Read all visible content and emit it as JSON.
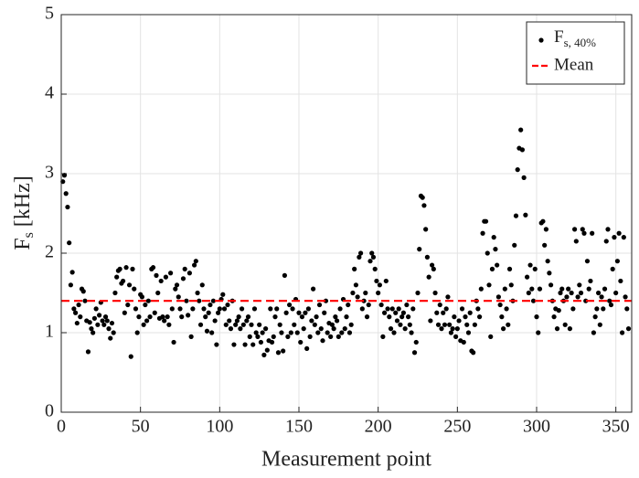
{
  "chart_data": {
    "type": "scatter",
    "xlabel": "Measurement point",
    "ylabel": {
      "main": "F",
      "sub": "s",
      "unit": " [kHz]"
    },
    "xlim": [
      0,
      360
    ],
    "xticks": [
      0,
      50,
      100,
      150,
      200,
      250,
      300,
      350
    ],
    "ylim": [
      0,
      5
    ],
    "yticks": [
      0,
      1,
      2,
      3,
      4,
      5
    ],
    "grid": true,
    "legend": "upper right",
    "x": [
      1,
      2,
      3,
      4,
      5,
      6,
      7,
      8,
      9,
      10,
      11,
      12,
      13,
      14,
      15,
      16,
      17,
      18,
      19,
      20,
      21,
      22,
      23,
      24,
      25,
      26,
      27,
      28,
      29,
      30,
      31,
      32,
      33,
      34,
      35,
      36,
      37,
      38,
      39,
      40,
      41,
      42,
      43,
      44,
      45,
      46,
      47,
      48,
      49,
      50,
      51,
      52,
      53,
      54,
      55,
      56,
      57,
      58,
      59,
      60,
      61,
      62,
      63,
      64,
      65,
      66,
      67,
      68,
      69,
      70,
      71,
      72,
      73,
      74,
      75,
      76,
      77,
      78,
      79,
      80,
      81,
      82,
      83,
      84,
      85,
      86,
      87,
      88,
      89,
      90,
      91,
      92,
      93,
      94,
      95,
      96,
      97,
      98,
      99,
      100,
      101,
      102,
      103,
      104,
      105,
      106,
      107,
      108,
      109,
      110,
      111,
      112,
      113,
      114,
      115,
      116,
      117,
      118,
      119,
      120,
      121,
      122,
      123,
      124,
      125,
      126,
      127,
      128,
      129,
      130,
      131,
      132,
      133,
      134,
      135,
      136,
      137,
      138,
      139,
      140,
      141,
      142,
      143,
      144,
      145,
      146,
      147,
      148,
      149,
      150,
      151,
      152,
      153,
      154,
      155,
      156,
      157,
      158,
      159,
      160,
      161,
      162,
      163,
      164,
      165,
      166,
      167,
      168,
      169,
      170,
      171,
      172,
      173,
      174,
      175,
      176,
      177,
      178,
      179,
      180,
      181,
      182,
      183,
      184,
      185,
      186,
      187,
      188,
      189,
      190,
      191,
      192,
      193,
      194,
      195,
      196,
      197,
      198,
      199,
      200,
      201,
      202,
      203,
      204,
      205,
      206,
      207,
      208,
      209,
      210,
      211,
      212,
      213,
      214,
      215,
      216,
      217,
      218,
      219,
      220,
      221,
      222,
      223,
      224,
      225,
      226,
      227,
      228,
      229,
      230,
      231,
      232,
      233,
      234,
      235,
      236,
      237,
      238,
      239,
      240,
      241,
      242,
      243,
      244,
      245,
      246,
      247,
      248,
      249,
      250,
      251,
      252,
      253,
      254,
      255,
      256,
      257,
      258,
      259,
      260,
      261,
      262,
      263,
      264,
      265,
      266,
      267,
      268,
      269,
      270,
      271,
      272,
      273,
      274,
      275,
      276,
      277,
      278,
      279,
      280,
      281,
      282,
      283,
      284,
      285,
      286,
      287,
      288,
      289,
      290,
      291,
      292,
      293,
      294,
      295,
      296,
      297,
      298,
      299,
      300,
      301,
      302,
      303,
      304,
      305,
      306,
      307,
      308,
      309,
      310,
      311,
      312,
      313,
      314,
      315,
      316,
      317,
      318,
      319,
      320,
      321,
      322,
      323,
      324,
      325,
      326,
      327,
      328,
      329,
      330,
      331,
      332,
      333,
      334,
      335,
      336,
      337,
      338,
      339,
      340,
      341,
      342,
      343,
      344,
      345,
      346,
      347,
      348,
      349,
      350,
      351,
      352,
      353,
      354,
      355,
      356,
      357,
      358
    ],
    "series": [
      {
        "name": "F",
        "name_subscript": "s, 40%",
        "color": "#000000",
        "values": [
          2.9,
          2.98,
          2.75,
          2.58,
          2.13,
          1.6,
          1.76,
          1.3,
          1.25,
          1.12,
          1.35,
          1.2,
          1.55,
          1.52,
          1.4,
          1.15,
          0.76,
          1.13,
          1.05,
          1.0,
          1.18,
          1.3,
          1.1,
          1.22,
          1.38,
          1.15,
          1.1,
          1.2,
          1.15,
          1.05,
          0.93,
          1.12,
          1.0,
          1.5,
          1.7,
          1.78,
          1.8,
          1.62,
          1.65,
          1.25,
          1.82,
          1.35,
          1.6,
          0.7,
          1.8,
          1.55,
          1.3,
          1.0,
          1.2,
          1.48,
          1.45,
          1.1,
          1.35,
          1.15,
          1.4,
          1.2,
          1.8,
          1.82,
          1.25,
          1.72,
          1.5,
          1.18,
          1.65,
          1.2,
          1.15,
          1.7,
          1.2,
          1.1,
          1.75,
          1.3,
          0.88,
          1.55,
          1.6,
          1.45,
          1.3,
          1.2,
          1.68,
          1.8,
          1.4,
          1.22,
          1.75,
          0.95,
          1.3,
          1.85,
          1.9,
          1.5,
          1.4,
          1.1,
          1.6,
          1.3,
          1.2,
          1.02,
          1.25,
          1.35,
          1.0,
          1.4,
          1.15,
          0.85,
          1.25,
          1.3,
          1.42,
          1.48,
          1.3,
          1.1,
          1.35,
          1.15,
          1.05,
          1.4,
          0.85,
          1.1,
          1.15,
          1.2,
          1.05,
          1.3,
          1.1,
          0.85,
          1.15,
          1.2,
          0.95,
          1.1,
          0.85,
          1.3,
          1.0,
          0.95,
          1.1,
          0.88,
          1.0,
          0.72,
          1.05,
          0.78,
          0.9,
          1.3,
          0.88,
          0.95,
          1.2,
          1.3,
          0.75,
          1.1,
          1.0,
          0.77,
          1.72,
          1.25,
          0.95,
          1.35,
          1.0,
          1.3,
          1.1,
          1.42,
          1.0,
          1.25,
          0.88,
          1.2,
          1.05,
          1.25,
          0.8,
          1.3,
          0.95,
          1.15,
          1.55,
          1.1,
          1.2,
          1.0,
          1.35,
          1.05,
          0.9,
          1.25,
          1.4,
          1.0,
          1.12,
          0.95,
          1.1,
          1.05,
          1.2,
          1.15,
          0.95,
          1.3,
          1.0,
          1.42,
          1.05,
          1.2,
          1.35,
          1.0,
          1.1,
          1.5,
          1.8,
          1.6,
          1.45,
          1.95,
          2.0,
          1.3,
          1.4,
          1.5,
          1.2,
          1.35,
          1.9,
          2.0,
          1.95,
          1.8,
          1.65,
          1.5,
          1.6,
          1.35,
          0.95,
          1.25,
          1.65,
          1.3,
          1.2,
          1.05,
          1.3,
          1.0,
          1.25,
          1.15,
          1.3,
          1.1,
          1.2,
          1.25,
          1.05,
          1.35,
          1.2,
          1.1,
          1.0,
          1.3,
          0.75,
          0.88,
          1.5,
          2.05,
          2.72,
          2.7,
          2.6,
          2.3,
          1.95,
          1.7,
          1.15,
          1.85,
          1.8,
          1.5,
          1.25,
          1.1,
          1.35,
          1.05,
          1.25,
          1.1,
          1.3,
          1.45,
          1.1,
          1.0,
          1.05,
          1.2,
          0.95,
          1.05,
          1.15,
          0.9,
          1.3,
          0.88,
          1.2,
          1.1,
          1.0,
          1.25,
          0.77,
          0.75,
          1.1,
          1.4,
          1.3,
          1.2,
          1.55,
          2.25,
          2.4,
          2.4,
          2.0,
          1.6,
          0.95,
          1.8,
          2.2,
          2.05,
          1.85,
          1.45,
          1.35,
          1.2,
          1.05,
          1.55,
          1.3,
          1.1,
          1.8,
          1.6,
          1.4,
          2.1,
          2.47,
          3.05,
          3.32,
          3.55,
          3.3,
          2.95,
          2.48,
          1.7,
          1.5,
          1.85,
          1.55,
          1.4,
          1.8,
          1.2,
          1.0,
          1.55,
          2.38,
          2.4,
          2.1,
          2.3,
          1.9,
          1.75,
          1.6,
          1.4,
          1.2,
          1.3,
          1.05,
          1.28,
          1.5,
          1.55,
          1.4,
          1.1,
          1.45,
          1.55,
          1.05,
          1.5,
          1.3,
          2.3,
          2.15,
          1.45,
          1.6,
          1.5,
          2.3,
          2.25,
          1.4,
          1.9,
          1.55,
          1.65,
          2.25,
          1.0,
          1.2,
          1.3,
          1.5,
          1.1,
          1.45,
          1.3,
          1.55,
          2.15,
          2.3,
          1.4,
          1.35,
          1.8,
          2.2,
          1.5,
          1.9,
          2.25,
          1.65,
          1.0,
          2.2,
          1.45,
          1.3,
          1.05
        ]
      },
      {
        "name": "Mean",
        "color": "#ff0000",
        "value": 1.4
      }
    ]
  }
}
